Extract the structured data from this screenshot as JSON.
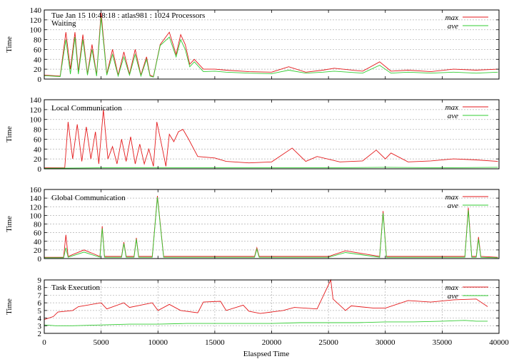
{
  "colors": {
    "max": "#e41a1c",
    "ave": "#33cc33",
    "grid": "#b0b0b0",
    "frame": "#000000"
  },
  "shared": {
    "xlabel": "Elaspsed Time",
    "ylabel": "Time",
    "xlim": [
      0,
      40000
    ],
    "xticks": [
      "0",
      "5000",
      "10000",
      "15000",
      "20000",
      "25000",
      "30000",
      "35000",
      "40000"
    ]
  },
  "chart_data": [
    {
      "type": "line",
      "title": "Tue Jan 15 10:48:18 : atlas981 : 1024 Processors",
      "subtitle": "Waiting",
      "xlabel": "",
      "ylabel": "Time",
      "xlim": [
        0,
        40000
      ],
      "ylim": [
        0,
        140
      ],
      "yticks": [
        0,
        20,
        40,
        60,
        80,
        100,
        120,
        140
      ],
      "grid": true,
      "legend": "top-right",
      "series": [
        {
          "name": "max",
          "x": [
            0,
            1400,
            1900,
            2300,
            2700,
            3000,
            3400,
            3800,
            4200,
            4600,
            5000,
            5500,
            6000,
            6500,
            7000,
            7500,
            8000,
            8500,
            9000,
            9300,
            9600,
            10200,
            11000,
            11600,
            12000,
            12400,
            12800,
            13200,
            14000,
            15000,
            16000,
            18000,
            20000,
            21500,
            23000,
            24500,
            25500,
            28000,
            29500,
            30500,
            32000,
            34000,
            36000,
            38000,
            39900
          ],
          "y": [
            8,
            6,
            95,
            20,
            95,
            15,
            90,
            10,
            70,
            8,
            135,
            10,
            60,
            8,
            55,
            10,
            60,
            8,
            45,
            8,
            5,
            70,
            95,
            50,
            90,
            70,
            30,
            40,
            20,
            20,
            18,
            15,
            14,
            25,
            14,
            18,
            22,
            16,
            35,
            16,
            18,
            15,
            20,
            18,
            20
          ]
        },
        {
          "name": "ave",
          "x": [
            0,
            1400,
            1900,
            2300,
            2700,
            3000,
            3400,
            3800,
            4200,
            4600,
            5000,
            5500,
            6000,
            6500,
            7000,
            7500,
            8000,
            8500,
            9000,
            9300,
            9600,
            10200,
            11000,
            11600,
            12000,
            12400,
            12800,
            13200,
            14000,
            15000,
            16000,
            18000,
            20000,
            21500,
            23000,
            24500,
            25500,
            28000,
            29500,
            30500,
            32000,
            34000,
            36000,
            38000,
            39900
          ],
          "y": [
            7,
            5,
            80,
            10,
            85,
            10,
            80,
            8,
            60,
            6,
            125,
            8,
            50,
            6,
            45,
            8,
            50,
            6,
            40,
            6,
            4,
            68,
            85,
            45,
            80,
            60,
            25,
            35,
            15,
            16,
            14,
            12,
            11,
            18,
            12,
            14,
            16,
            12,
            28,
            12,
            14,
            12,
            14,
            12,
            14
          ]
        }
      ]
    },
    {
      "type": "line",
      "title": "Local Communication",
      "xlabel": "",
      "ylabel": "Time",
      "xlim": [
        0,
        40000
      ],
      "ylim": [
        0,
        140
      ],
      "yticks": [
        0,
        20,
        40,
        60,
        80,
        100,
        120,
        140
      ],
      "grid": true,
      "legend": "top-right",
      "series": [
        {
          "name": "max",
          "x": [
            0,
            1800,
            2100,
            2500,
            2900,
            3300,
            3700,
            4100,
            4500,
            4800,
            5200,
            5600,
            6000,
            6400,
            6800,
            7200,
            7600,
            8000,
            8400,
            8800,
            9200,
            9600,
            9900,
            10400,
            10700,
            11000,
            11400,
            11800,
            12200,
            12700,
            13500,
            15000,
            16000,
            18000,
            20000,
            21800,
            23000,
            24000,
            26000,
            28000,
            29200,
            30000,
            30500,
            32000,
            34000,
            36000,
            38000,
            39900
          ],
          "y": [
            2,
            2,
            95,
            20,
            90,
            15,
            85,
            20,
            75,
            10,
            120,
            20,
            45,
            10,
            60,
            15,
            65,
            10,
            50,
            10,
            40,
            5,
            95,
            40,
            5,
            70,
            55,
            75,
            80,
            60,
            25,
            22,
            15,
            12,
            14,
            42,
            15,
            25,
            14,
            16,
            38,
            20,
            32,
            14,
            16,
            20,
            18,
            15
          ]
        },
        {
          "name": "ave",
          "x": [
            0,
            5000,
            10000,
            15000,
            20000,
            25000,
            30000,
            35000,
            39900
          ],
          "y": [
            1,
            2,
            2,
            2,
            2,
            2,
            3,
            2,
            3
          ]
        }
      ]
    },
    {
      "type": "line",
      "title": "Global Communication",
      "xlabel": "",
      "ylabel": "Time",
      "xlim": [
        0,
        40000
      ],
      "ylim": [
        0,
        160
      ],
      "yticks": [
        0,
        20,
        40,
        60,
        80,
        100,
        120,
        140,
        160
      ],
      "grid": true,
      "legend": "top-right",
      "series": [
        {
          "name": "max",
          "x": [
            0,
            1700,
            1900,
            2100,
            3500,
            4900,
            5100,
            5300,
            6800,
            7000,
            7200,
            7900,
            8100,
            8300,
            9500,
            9950,
            10500,
            18500,
            18700,
            18900,
            24500,
            25000,
            26500,
            29500,
            29800,
            30100,
            37000,
            37300,
            37600,
            38000,
            38200,
            38400,
            39900
          ],
          "y": [
            3,
            3,
            55,
            5,
            20,
            5,
            75,
            5,
            5,
            38,
            5,
            5,
            48,
            5,
            5,
            145,
            5,
            5,
            25,
            5,
            5,
            5,
            18,
            5,
            110,
            5,
            5,
            118,
            5,
            5,
            50,
            5,
            3
          ]
        },
        {
          "name": "ave",
          "x": [
            0,
            1700,
            1900,
            2100,
            3500,
            4900,
            5100,
            5300,
            6800,
            7000,
            7200,
            7900,
            8100,
            8300,
            9500,
            9950,
            10500,
            18500,
            18700,
            18900,
            24500,
            25000,
            26500,
            29500,
            29800,
            30100,
            37000,
            37300,
            37600,
            38000,
            38200,
            38400,
            39900
          ],
          "y": [
            2,
            2,
            25,
            3,
            15,
            3,
            70,
            3,
            3,
            35,
            3,
            3,
            45,
            3,
            3,
            142,
            3,
            3,
            22,
            3,
            3,
            3,
            14,
            3,
            105,
            3,
            3,
            112,
            3,
            3,
            45,
            3,
            2
          ]
        }
      ]
    },
    {
      "type": "line",
      "title": "Task Execution",
      "xlabel": "Elaspsed Time",
      "ylabel": "Time",
      "xlim": [
        0,
        40000
      ],
      "ylim": [
        2,
        9
      ],
      "yticks": [
        2,
        3,
        4,
        5,
        6,
        7,
        8,
        9
      ],
      "grid": true,
      "legend": "top-right",
      "series": [
        {
          "name": "max",
          "x": [
            0,
            800,
            1200,
            2500,
            3000,
            5000,
            5500,
            7000,
            7500,
            9500,
            10000,
            11000,
            12000,
            13500,
            14000,
            15500,
            16000,
            17500,
            18000,
            19000,
            20000,
            21000,
            22000,
            24000,
            25200,
            25400,
            26500,
            27000,
            29000,
            30000,
            32000,
            34000,
            36000,
            38000,
            39000
          ],
          "y": [
            3.8,
            4.2,
            4.8,
            5.0,
            5.5,
            6.0,
            5.2,
            6.0,
            5.4,
            6.0,
            5.0,
            5.8,
            5.0,
            4.7,
            6.1,
            6.2,
            5.0,
            5.7,
            4.9,
            4.6,
            4.8,
            5.0,
            5.4,
            5.2,
            9.0,
            6.5,
            5.0,
            5.6,
            5.3,
            5.3,
            6.3,
            6.1,
            6.4,
            6.5,
            5.5
          ]
        },
        {
          "name": "ave",
          "x": [
            0,
            1000,
            2500,
            5000,
            7500,
            10000,
            12500,
            15000,
            17500,
            20000,
            22500,
            25000,
            27500,
            30000,
            32500,
            35000,
            37000,
            38000,
            39000
          ],
          "y": [
            3.1,
            3.0,
            3.0,
            3.1,
            3.2,
            3.2,
            3.3,
            3.3,
            3.3,
            3.3,
            3.4,
            3.4,
            3.4,
            3.5,
            3.5,
            3.6,
            3.7,
            3.6,
            3.6
          ]
        }
      ]
    }
  ]
}
